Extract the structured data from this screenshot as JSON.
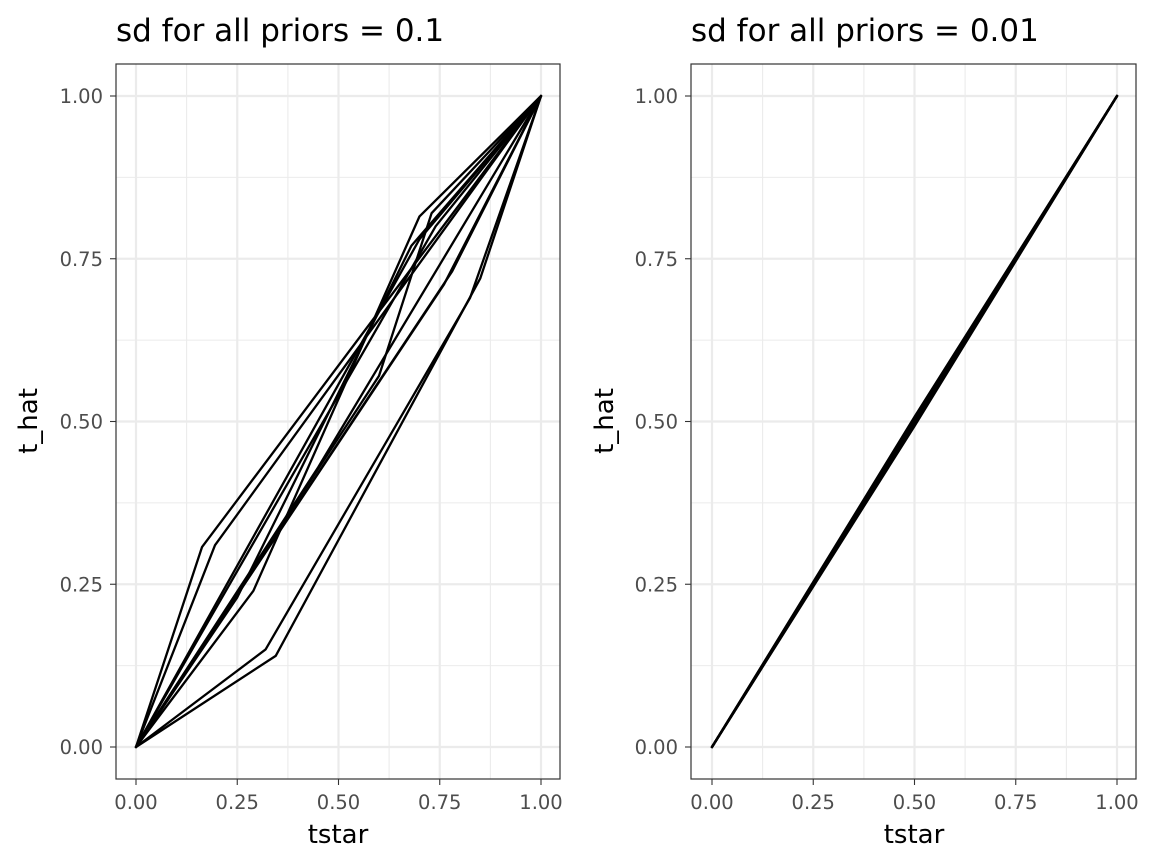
{
  "chart_data": [
    {
      "type": "line",
      "title": "sd for all priors = 0.1",
      "xlabel": "tstar",
      "ylabel": "t_hat",
      "xlim": [
        0,
        1
      ],
      "ylim": [
        0,
        1
      ],
      "xticks": [
        "0.00",
        "0.25",
        "0.50",
        "0.75",
        "1.00"
      ],
      "yticks": [
        "0.00",
        "0.25",
        "0.50",
        "0.75",
        "1.00"
      ],
      "grid": true,
      "line_color": "#000000",
      "series": [
        {
          "x": [
            0,
            0.163,
            1
          ],
          "y": [
            0,
            0.307,
            1
          ]
        },
        {
          "x": [
            0,
            0.195,
            1
          ],
          "y": [
            0,
            0.31,
            1
          ]
        },
        {
          "x": [
            0,
            0.29,
            0.7,
            1
          ],
          "y": [
            0,
            0.24,
            0.815,
            1
          ]
        },
        {
          "x": [
            0,
            0.25,
            0.68,
            1
          ],
          "y": [
            0,
            0.23,
            0.77,
            1
          ]
        },
        {
          "x": [
            0,
            0.7,
            1
          ],
          "y": [
            0,
            0.78,
            1
          ]
        },
        {
          "x": [
            0,
            0.74,
            1
          ],
          "y": [
            0,
            0.8,
            1
          ]
        },
        {
          "x": [
            0,
            0.78,
            1
          ],
          "y": [
            0,
            0.73,
            1
          ]
        },
        {
          "x": [
            0,
            0.76,
            1
          ],
          "y": [
            0,
            0.71,
            1
          ]
        },
        {
          "x": [
            0,
            0.32,
            0.825,
            1
          ],
          "y": [
            0,
            0.15,
            0.69,
            1
          ]
        },
        {
          "x": [
            0,
            0.345,
            0.85,
            1
          ],
          "y": [
            0,
            0.14,
            0.72,
            1
          ]
        },
        {
          "x": [
            0,
            0.6,
            0.73,
            1
          ],
          "y": [
            0,
            0.57,
            0.82,
            1
          ]
        },
        {
          "x": [
            0,
            0.45,
            1
          ],
          "y": [
            0,
            0.43,
            1
          ]
        }
      ]
    },
    {
      "type": "line",
      "title": "sd for all priors = 0.01",
      "xlabel": "tstar",
      "ylabel": "t_hat",
      "xlim": [
        0,
        1
      ],
      "ylim": [
        0,
        1
      ],
      "xticks": [
        "0.00",
        "0.25",
        "0.50",
        "0.75",
        "1.00"
      ],
      "yticks": [
        "0.00",
        "0.25",
        "0.50",
        "0.75",
        "1.00"
      ],
      "grid": true,
      "line_color": "#000000",
      "series": [
        {
          "x": [
            0,
            0.5,
            1
          ],
          "y": [
            0,
            0.5,
            1
          ]
        },
        {
          "x": [
            0,
            0.5,
            1
          ],
          "y": [
            0,
            0.496,
            1
          ]
        },
        {
          "x": [
            0,
            0.5,
            1
          ],
          "y": [
            0,
            0.504,
            1
          ]
        },
        {
          "x": [
            0,
            0.5,
            1
          ],
          "y": [
            0,
            0.493,
            1
          ]
        },
        {
          "x": [
            0,
            0.5,
            1
          ],
          "y": [
            0,
            0.507,
            1
          ]
        },
        {
          "x": [
            0,
            0.5,
            1
          ],
          "y": [
            0,
            0.498,
            1
          ]
        },
        {
          "x": [
            0,
            0.5,
            1
          ],
          "y": [
            0,
            0.502,
            1
          ]
        },
        {
          "x": [
            0,
            0.5,
            1
          ],
          "y": [
            0,
            0.495,
            1
          ]
        },
        {
          "x": [
            0,
            0.5,
            1
          ],
          "y": [
            0,
            0.505,
            1
          ]
        },
        {
          "x": [
            0,
            0.5,
            1
          ],
          "y": [
            0,
            0.499,
            1
          ]
        },
        {
          "x": [
            0,
            0.5,
            1
          ],
          "y": [
            0,
            0.501,
            1
          ]
        },
        {
          "x": [
            0,
            0.5,
            1
          ],
          "y": [
            0,
            0.497,
            1
          ]
        }
      ]
    }
  ]
}
